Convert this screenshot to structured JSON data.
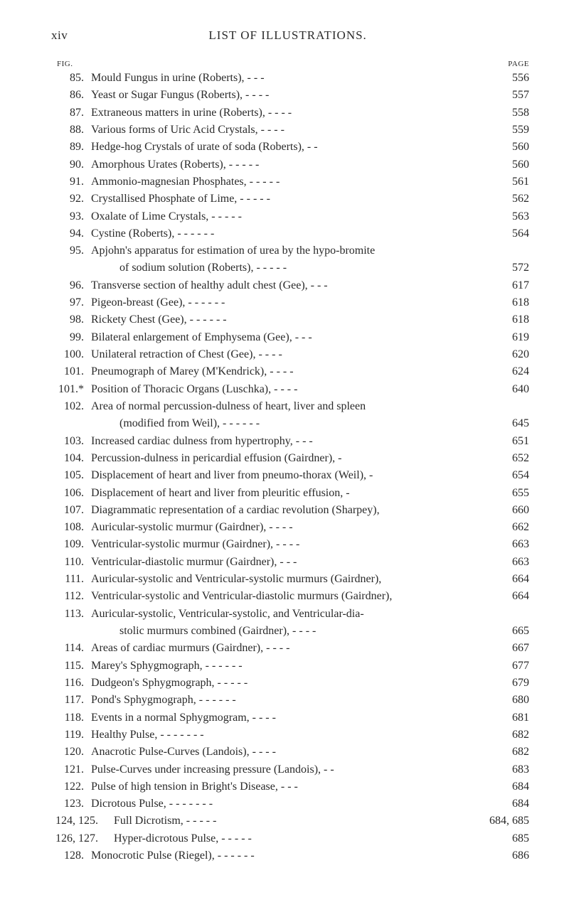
{
  "header": {
    "roman_page": "xiv",
    "title": "LIST OF ILLUSTRATIONS."
  },
  "column_labels": {
    "fig": "FIG.",
    "page": "PAGE"
  },
  "entries": [
    {
      "num": "85.",
      "text": "Mould Fungus in urine (Roberts),",
      "page": "556",
      "dashes": "  -  -  -  "
    },
    {
      "num": "86.",
      "text": "Yeast or Sugar Fungus (Roberts),",
      "page": "557",
      "dashes": "  -  -  -  -  "
    },
    {
      "num": "87.",
      "text": "Extraneous matters in urine (Roberts),  -",
      "page": "558",
      "dashes": "  -  -  -  "
    },
    {
      "num": "88.",
      "text": "Various forms of Uric Acid Crystals,",
      "page": "559",
      "dashes": "  -  -  -  -  "
    },
    {
      "num": "89.",
      "text": "Hedge-hog Crystals of urate of soda (Roberts),",
      "page": "560",
      "dashes": "  -  -  "
    },
    {
      "num": "90.",
      "text": "Amorphous Urates (Roberts),",
      "page": "560",
      "dashes": "  -  -  -  -  -  "
    },
    {
      "num": "91.",
      "text": "Ammonio-magnesian Phosphates, -",
      "page": "561",
      "dashes": "  -  -  -  -  "
    },
    {
      "num": "92.",
      "text": "Crystallised Phosphate of Lime,  -",
      "page": "562",
      "dashes": "  -  -  -  -  "
    },
    {
      "num": "93.",
      "text": "Oxalate of Lime Crystals,",
      "page": "563",
      "dashes": "  -  -  -  -  -  "
    },
    {
      "num": "94.",
      "text": "Cystine (Roberts),",
      "page": "564",
      "dashes": "  -  -  -  -  -  -  "
    },
    {
      "num": "95.",
      "text": "Apjohn's apparatus for estimation of urea by the hypo-bromite",
      "page": "",
      "dashes": ""
    },
    {
      "num": "",
      "text": "of sodium solution (Roberts),",
      "page": "572",
      "dashes": "  -  -  -  -  -  ",
      "indent": true
    },
    {
      "num": "96.",
      "text": "Transverse section of healthy adult chest (Gee), -",
      "page": "617",
      "dashes": "  -  -  "
    },
    {
      "num": "97.",
      "text": "Pigeon-breast (Gee),",
      "page": "618",
      "dashes": "  -  -  -  -  -  -  "
    },
    {
      "num": "98.",
      "text": "Rickety Chest (Gee),",
      "page": "618",
      "dashes": "  -  -  -  -  -  -  "
    },
    {
      "num": "99.",
      "text": "Bilateral enlargement of Emphysema (Gee),",
      "page": "619",
      "dashes": "  -  -  -  "
    },
    {
      "num": "100.",
      "text": "Unilateral retraction of Chest (Gee),",
      "page": "620",
      "dashes": "  -  -  -  -  "
    },
    {
      "num": "101.",
      "text": "Pneumograph of Marey (M'Kendrick),",
      "page": "624",
      "dashes": "  -  -  -  -  "
    },
    {
      "num": "101.*",
      "text": "Position of Thoracic Organs (Luschka),  -",
      "page": "640",
      "dashes": "  -  -  -  "
    },
    {
      "num": "102.",
      "text": "Area of normal percussion-dulness of heart, liver and spleen",
      "page": "",
      "dashes": ""
    },
    {
      "num": "",
      "text": "(modified from Weil),",
      "page": "645",
      "dashes": "  -  -  -  -  -  -  ",
      "indent": true
    },
    {
      "num": "103.",
      "text": "Increased cardiac dulness from hypertrophy,",
      "page": "651",
      "dashes": "  -  -  -  "
    },
    {
      "num": "104.",
      "text": "Percussion-dulness in pericardial effusion (Gairdner),",
      "page": "652",
      "dashes": "  -  "
    },
    {
      "num": "105.",
      "text": "Displacement of heart and liver from pneumo-thorax (Weil),",
      "page": "654",
      "dashes": "  -  "
    },
    {
      "num": "106.",
      "text": "Displacement of heart and liver from pleuritic effusion,",
      "page": "655",
      "dashes": "  -  "
    },
    {
      "num": "107.",
      "text": "Diagrammatic representation of a cardiac revolution (Sharpey),",
      "page": "660",
      "dashes": ""
    },
    {
      "num": "108.",
      "text": "Auricular-systolic murmur (Gairdner),",
      "page": "662",
      "dashes": "  -  -  -  -  "
    },
    {
      "num": "109.",
      "text": "Ventricular-systolic murmur (Gairdner), -",
      "page": "663",
      "dashes": "  -  -  -  "
    },
    {
      "num": "110.",
      "text": "Ventricular-diastolic murmur (Gairdner),",
      "page": "663",
      "dashes": "  -  -  -  "
    },
    {
      "num": "111.",
      "text": "Auricular-systolic and Ventricular-systolic murmurs (Gairdner),",
      "page": "664",
      "dashes": ""
    },
    {
      "num": "112.",
      "text": "Ventricular-systolic and Ventricular-diastolic murmurs (Gairdner),",
      "page": "664",
      "dashes": ""
    },
    {
      "num": "113.",
      "text": "Auricular-systolic, Ventricular-systolic, and Ventricular-dia-",
      "page": "",
      "dashes": ""
    },
    {
      "num": "",
      "text": "stolic murmurs combined (Gairdner),  -",
      "page": "665",
      "dashes": "  -  -  -  ",
      "indent": true
    },
    {
      "num": "114.",
      "text": "Areas of cardiac murmurs (Gairdner),",
      "page": "667",
      "dashes": "  -  -  -  -  "
    },
    {
      "num": "115.",
      "text": "Marey's Sphygmograph,",
      "page": "677",
      "dashes": "  -  -  -  -  -  -  "
    },
    {
      "num": "116.",
      "text": "Dudgeon's Sphygmograph,",
      "page": "679",
      "dashes": "  -  -  -  -  -  "
    },
    {
      "num": "117.",
      "text": "Pond's Sphygmograph,",
      "page": "680",
      "dashes": "  -  -  -  -  -  -  "
    },
    {
      "num": "118.",
      "text": "Events in a normal Sphygmogram,",
      "page": "681",
      "dashes": "  -  -  -  -  "
    },
    {
      "num": "119.",
      "text": "Healthy Pulse,",
      "page": "682",
      "dashes": "  -  -  -  -  -  -  -  "
    },
    {
      "num": "120.",
      "text": "Anacrotic Pulse-Curves (Landois),",
      "page": "682",
      "dashes": "  -  -  -  -  "
    },
    {
      "num": "121.",
      "text": "Pulse-Curves under increasing pressure (Landois),",
      "page": "683",
      "dashes": "  -  -  "
    },
    {
      "num": "122.",
      "text": "Pulse of high tension in Bright's Disease,",
      "page": "684",
      "dashes": "  -  -  -  "
    },
    {
      "num": "123.",
      "text": "Dicrotous Pulse,  -",
      "page": "684",
      "dashes": "  -  -  -  -  -  -  "
    },
    {
      "num": "124, 125.",
      "text": "Full Dicrotism,",
      "page": "684, 685",
      "dashes": "  -  -  -  -  -  ",
      "wide": true
    },
    {
      "num": "126, 127.",
      "text": "Hyper-dicrotous Pulse,",
      "page": "685",
      "dashes": "  -  -  -  -  -  ",
      "wide": true
    },
    {
      "num": "128.",
      "text": "Monocrotic Pulse (Riegel), -",
      "page": "686",
      "dashes": "  -  -  -  -  -  "
    }
  ]
}
